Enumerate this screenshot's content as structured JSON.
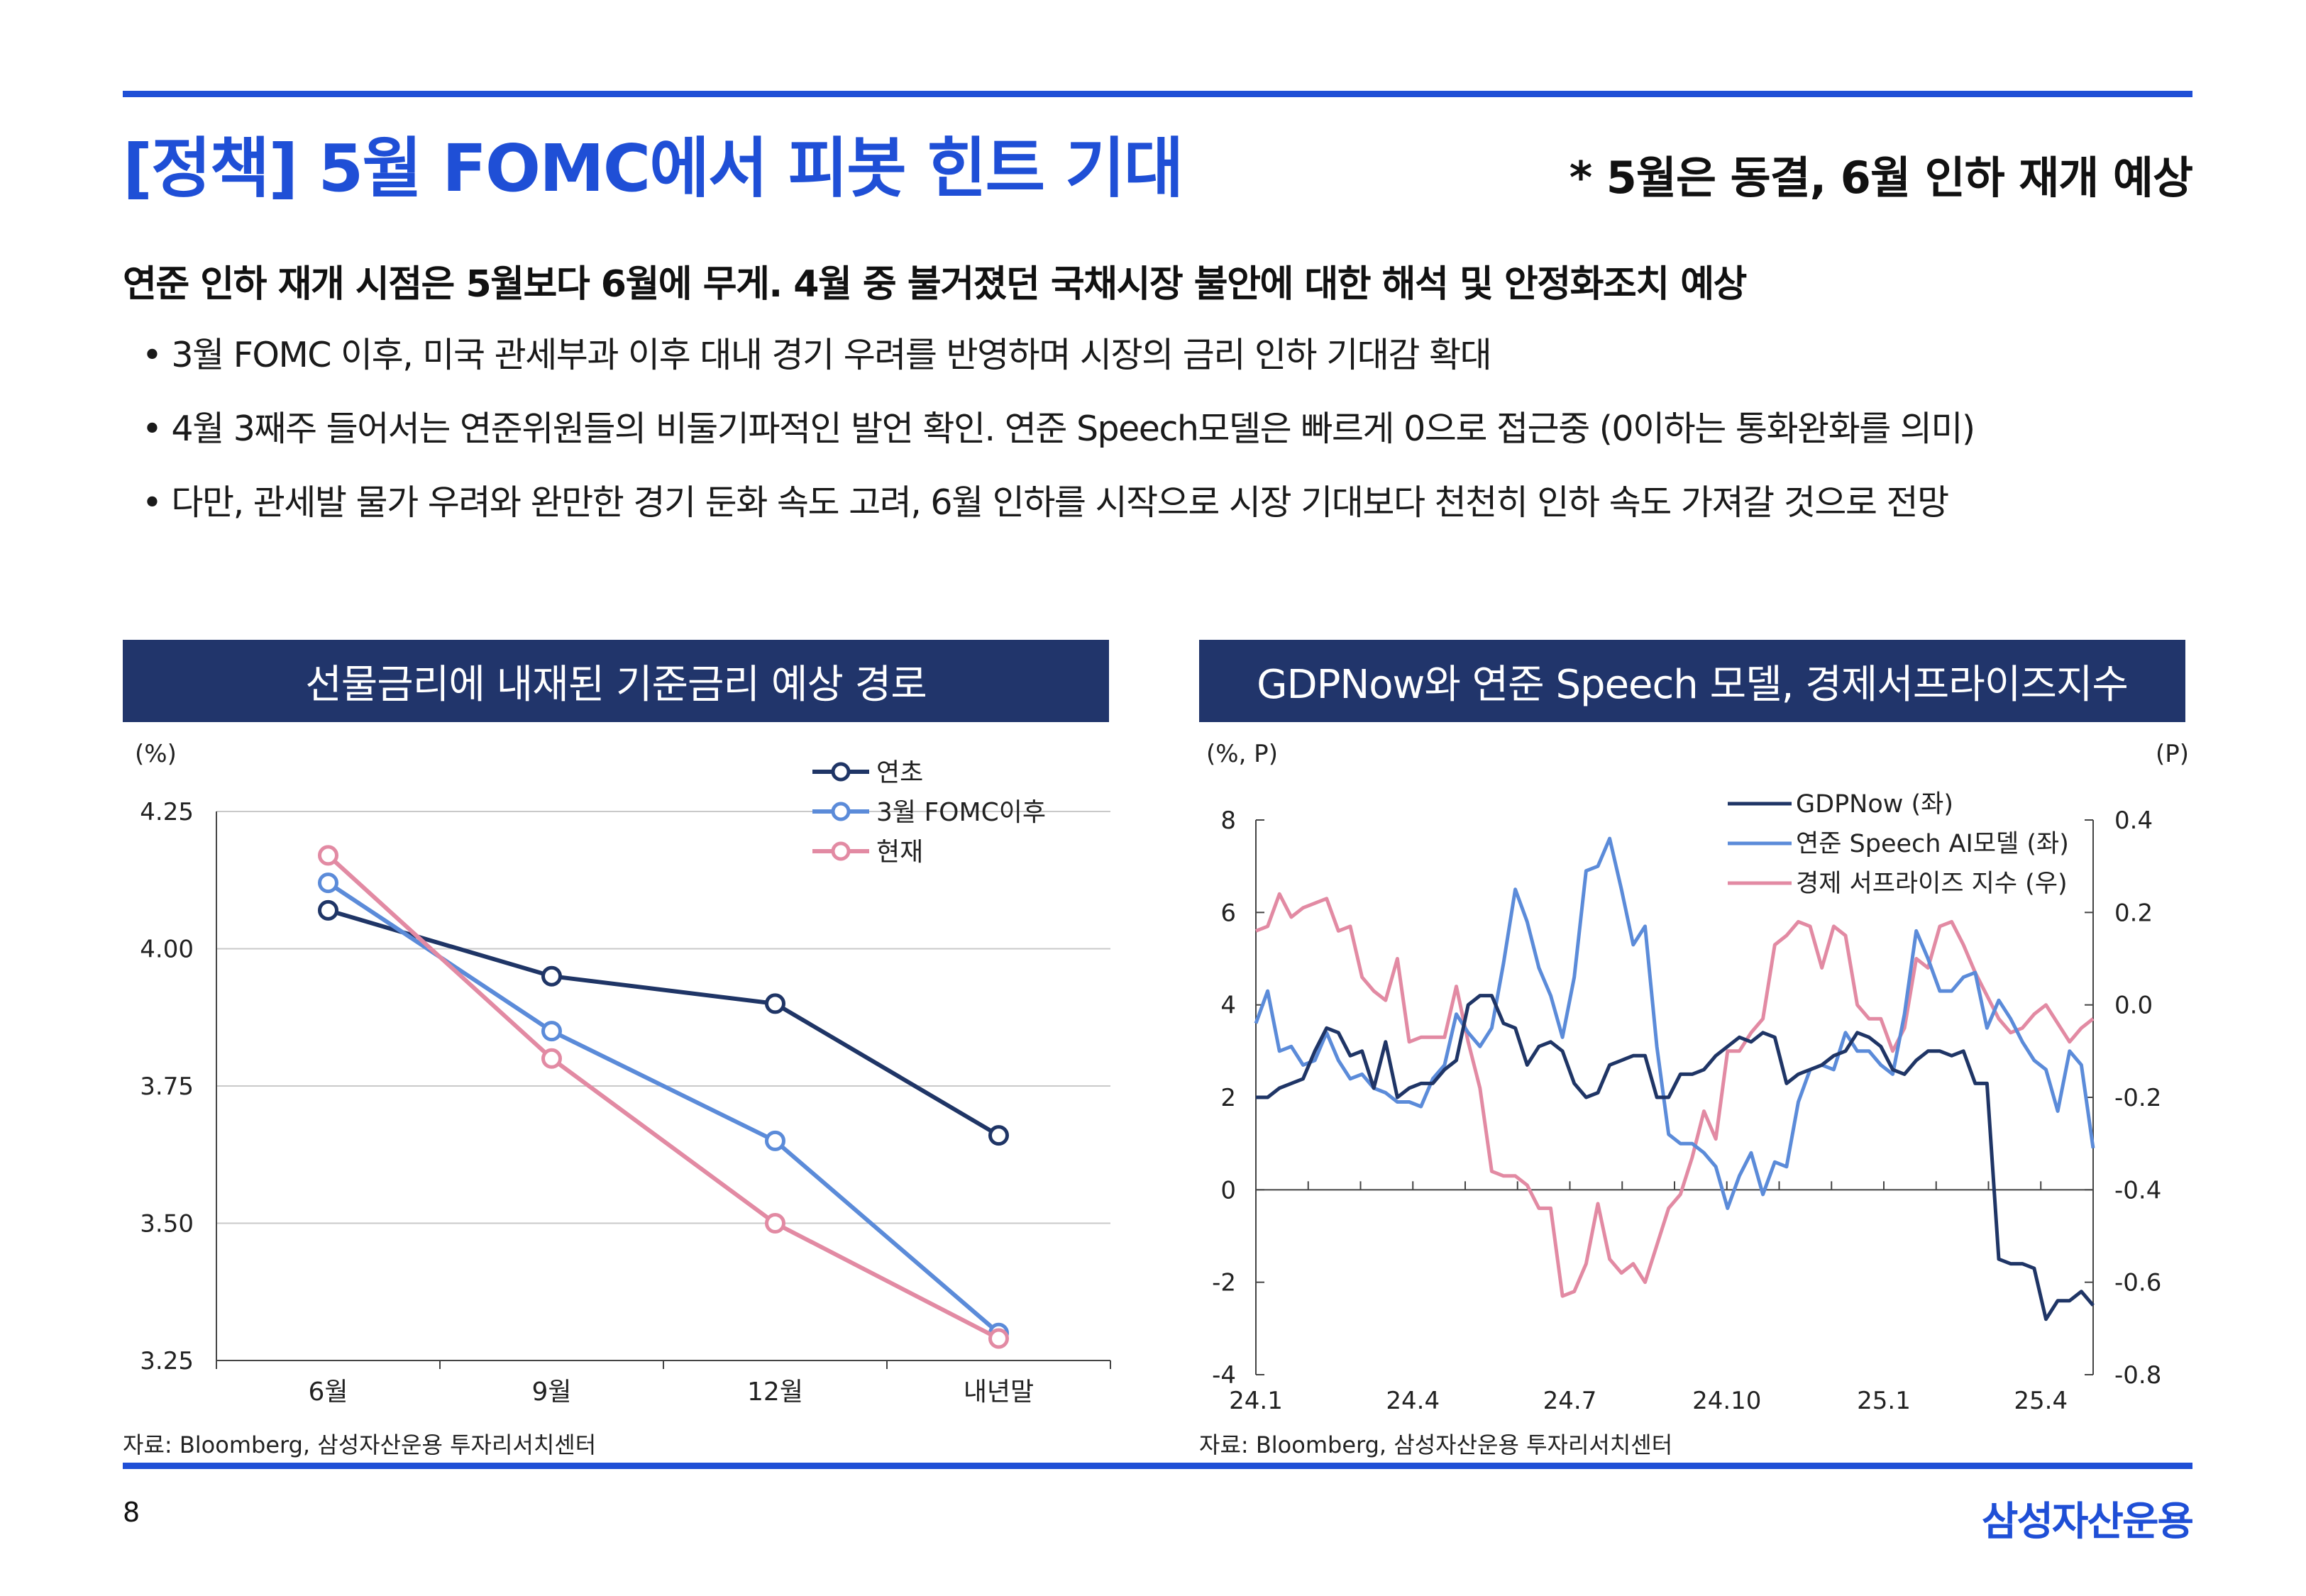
{
  "header": {
    "title": "[정책] 5월 FOMC에서 피봇 힌트 기대",
    "subtitle": "* 5월은 동결, 6월 인하 재개 예상"
  },
  "headline": "연준 인하 재개 시점은 5월보다 6월에 무게. 4월 중 불거졌던 국채시장 불안에 대한 해석 및 안정화조치 예상",
  "bullets": [
    "3월 FOMC 이후, 미국 관세부과 이후 대내 경기 우려를 반영하며 시장의 금리 인하 기대감 확대",
    "4월 3째주 들어서는 연준위원들의 비둘기파적인 발언 확인. 연준 Speech모델은 빠르게 0으로 접근중 (0이하는 통화완화를 의미)",
    "다만, 관세발 물가 우려와 완만한 경기 둔화 속도 고려, 6월 인하를 시작으로 시장 기대보다 천천히 인하 속도 가져갈 것으로 전망"
  ],
  "colors": {
    "accent": "#1f4fd6",
    "panel_header": "#21356b",
    "navy": "#1f3566",
    "blue": "#5b8bd9",
    "pink": "#e28aa3"
  },
  "chart_left": {
    "header": "선물금리에 내재된 기준금리 예상 경로",
    "source": "자료: Bloomberg, 삼성자산운용 투자리서치센터",
    "chart_data": {
      "type": "line",
      "title": "선물금리에 내재된 기준금리 예상 경로",
      "ylabel": "(%)",
      "ylim": [
        3.25,
        4.25
      ],
      "yticks": [
        "4.25",
        "4.00",
        "3.75",
        "3.50",
        "3.25"
      ],
      "categories": [
        "6월",
        "9월",
        "12월",
        "내년말"
      ],
      "series": [
        {
          "name": "연초",
          "color": "#1f3566",
          "values": [
            4.07,
            3.95,
            3.9,
            3.66
          ]
        },
        {
          "name": "3월 FOMC이후",
          "color": "#5b8bd9",
          "values": [
            4.12,
            3.85,
            3.65,
            3.3
          ]
        },
        {
          "name": "현재",
          "color": "#e28aa3",
          "values": [
            4.17,
            3.8,
            3.5,
            3.29
          ]
        }
      ],
      "legend": "top-right"
    }
  },
  "chart_right": {
    "header": "GDPNow와 연준 Speech 모델, 경제서프라이즈지수",
    "source": "자료: Bloomberg, 삼성자산운용 투자리서치센터",
    "chart_data": {
      "type": "line",
      "title": "GDPNow와 연준 Speech 모델, 경제서프라이즈지수",
      "ylabel_left": "(%, P)",
      "ylabel_right": "(P)",
      "ylim_left": [
        -4,
        8
      ],
      "ylim_right": [
        -0.8,
        0.4
      ],
      "yticks_left": [
        "8",
        "6",
        "4",
        "2",
        "0",
        "-2",
        "-4"
      ],
      "yticks_right": [
        "0.4",
        "0.2",
        "0.0",
        "-0.2",
        "-0.4",
        "-0.6",
        "-0.8"
      ],
      "xticks": [
        "24.1",
        "24.4",
        "24.7",
        "24.10",
        "25.1",
        "25.4"
      ],
      "x_range_months": [
        0,
        16
      ],
      "xtick_months": [
        0,
        3,
        6,
        9,
        12,
        15
      ],
      "series": [
        {
          "name": "GDPNow (좌)",
          "axis": "left",
          "color": "#1f3566",
          "values": [
            2.0,
            2.0,
            2.2,
            2.3,
            2.4,
            3.0,
            3.5,
            3.4,
            2.9,
            3.0,
            2.2,
            3.2,
            2.0,
            2.2,
            2.3,
            2.3,
            2.6,
            2.8,
            4.0,
            4.2,
            4.2,
            3.6,
            3.5,
            2.7,
            3.1,
            3.2,
            3.0,
            2.3,
            2.0,
            2.1,
            2.7,
            2.8,
            2.9,
            2.9,
            2.0,
            2.0,
            2.5,
            2.5,
            2.6,
            2.9,
            3.1,
            3.3,
            3.2,
            3.4,
            3.3,
            2.3,
            2.5,
            2.6,
            2.7,
            2.9,
            3.0,
            3.4,
            3.3,
            3.1,
            2.6,
            2.5,
            2.8,
            3.0,
            3.0,
            2.9,
            3.0,
            2.3,
            2.3,
            -1.5,
            -1.6,
            -1.6,
            -1.7,
            -2.8,
            -2.4,
            -2.4,
            -2.2,
            -2.5
          ]
        },
        {
          "name": "연준 Speech AI모델 (좌)",
          "axis": "left",
          "color": "#5b8bd9",
          "values": [
            3.6,
            4.3,
            3.0,
            3.1,
            2.7,
            2.8,
            3.4,
            2.8,
            2.4,
            2.5,
            2.2,
            2.1,
            1.9,
            1.9,
            1.8,
            2.4,
            2.7,
            3.8,
            3.4,
            3.1,
            3.5,
            4.9,
            6.5,
            5.8,
            4.8,
            4.2,
            3.3,
            4.6,
            6.9,
            7.0,
            7.6,
            6.5,
            5.3,
            5.7,
            3.1,
            1.2,
            1.0,
            1.0,
            0.8,
            0.5,
            -0.4,
            0.3,
            0.8,
            -0.1,
            0.6,
            0.5,
            1.9,
            2.6,
            2.7,
            2.6,
            3.4,
            3.0,
            3.0,
            2.7,
            2.5,
            3.8,
            5.6,
            5.0,
            4.3,
            4.3,
            4.6,
            4.7,
            3.5,
            4.1,
            3.7,
            3.2,
            2.8,
            2.6,
            1.7,
            3.0,
            2.7,
            0.9
          ]
        },
        {
          "name": "경제 서프라이즈 지수 (우)",
          "axis": "right",
          "color": "#e28aa3",
          "values": [
            0.16,
            0.17,
            0.24,
            0.19,
            0.21,
            0.22,
            0.23,
            0.16,
            0.17,
            0.06,
            0.03,
            0.01,
            0.1,
            -0.08,
            -0.07,
            -0.07,
            -0.07,
            0.04,
            -0.08,
            -0.18,
            -0.36,
            -0.37,
            -0.37,
            -0.39,
            -0.44,
            -0.44,
            -0.63,
            -0.62,
            -0.56,
            -0.43,
            -0.55,
            -0.58,
            -0.56,
            -0.6,
            -0.52,
            -0.44,
            -0.41,
            -0.33,
            -0.23,
            -0.29,
            -0.1,
            -0.1,
            -0.06,
            -0.03,
            0.13,
            0.15,
            0.18,
            0.17,
            0.08,
            0.17,
            0.15,
            0.0,
            -0.03,
            -0.03,
            -0.1,
            -0.05,
            0.1,
            0.08,
            0.17,
            0.18,
            0.13,
            0.07,
            0.02,
            -0.03,
            -0.06,
            -0.05,
            -0.02,
            0.0,
            -0.04,
            -0.08,
            -0.05,
            -0.03
          ]
        }
      ],
      "legend": "top-right"
    }
  },
  "footer": {
    "page": "8",
    "logo": "삼성자산운용"
  }
}
